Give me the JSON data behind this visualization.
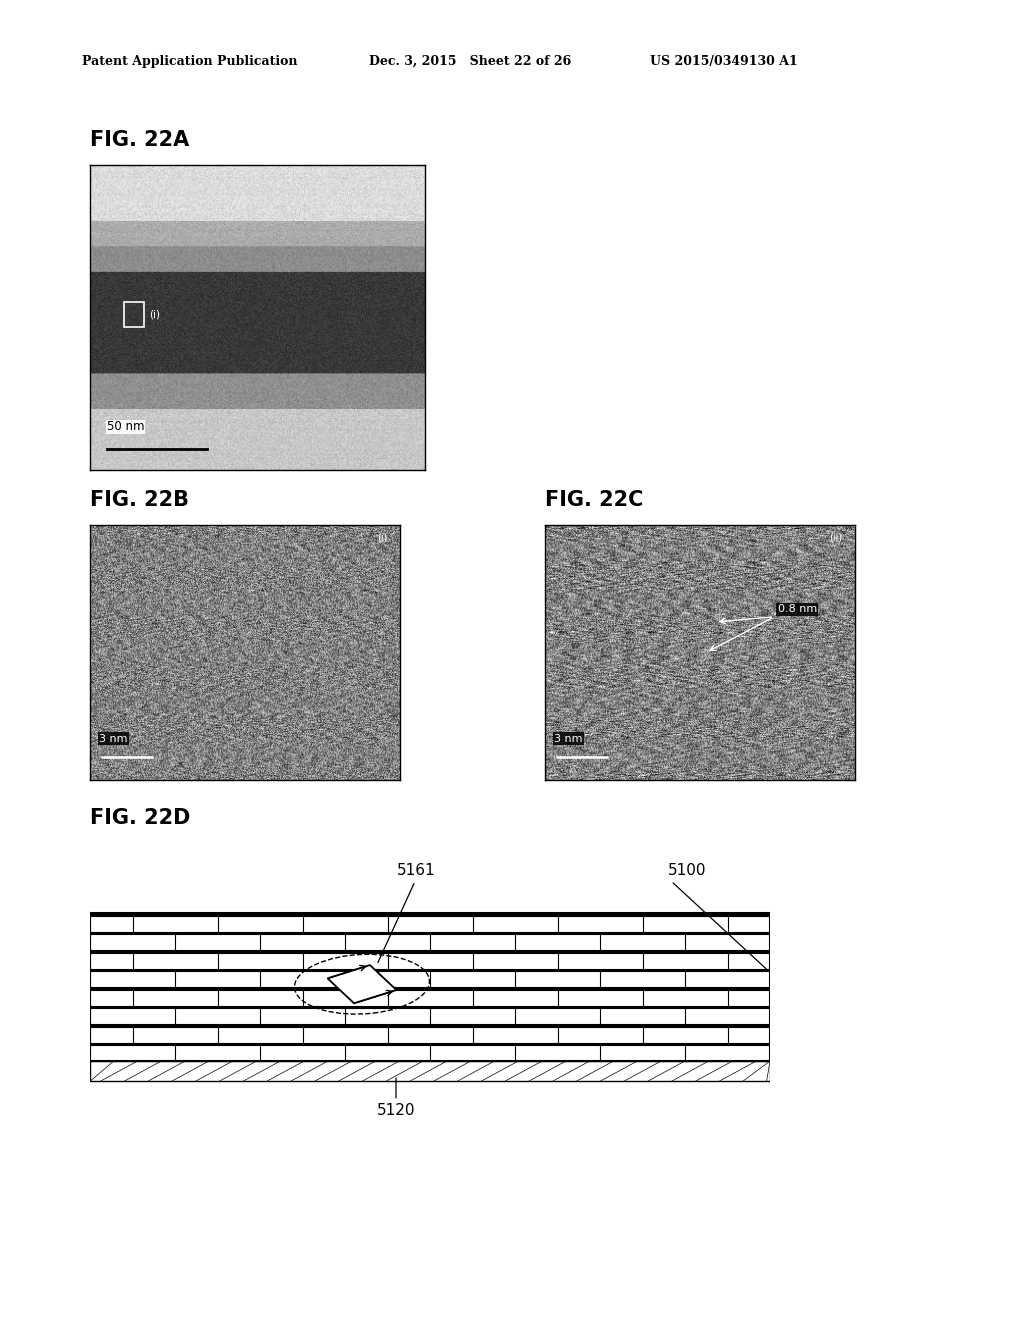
{
  "page_header_left": "Patent Application Publication",
  "page_header_middle": "Dec. 3, 2015   Sheet 22 of 26",
  "page_header_right": "US 2015/0349130 A1",
  "fig22a_label": "FIG. 22A",
  "fig22b_label": "FIG. 22B",
  "fig22c_label": "FIG. 22C",
  "fig22d_label": "FIG. 22D",
  "scale_22a": "50 nm",
  "scale_22b": "3 nm",
  "scale_22c": "3 nm",
  "annotation_22c": "0.8 nm",
  "label_5161": "5161",
  "label_5100": "5100",
  "label_5120": "5120",
  "bg_color": "#ffffff"
}
